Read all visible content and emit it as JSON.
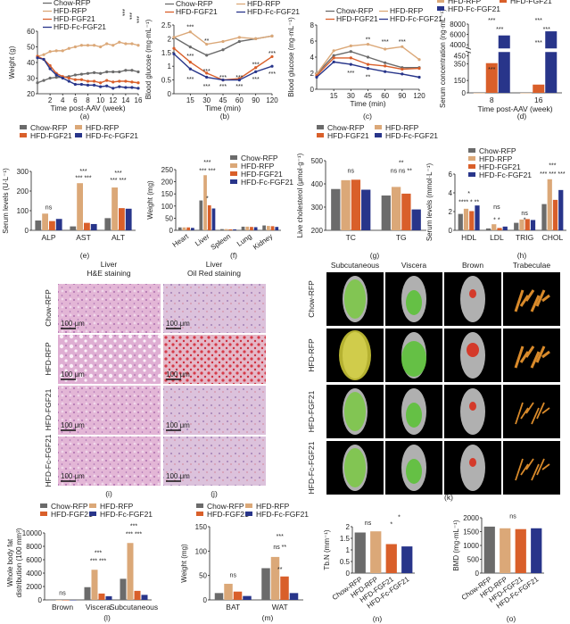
{
  "colors": {
    "Chow-RFP": "#6b6b6b",
    "HFD-RFP": "#dba878",
    "HFD-FGF21": "#d95f2a",
    "HFD-Fc-FGF21": "#28358a"
  },
  "panel_labels": {
    "a": "(a)",
    "b": "(b)",
    "c": "(c)",
    "d": "(d)",
    "e": "(e)",
    "f": "(f)",
    "g": "(g)",
    "h": "(h)",
    "i": "(i)",
    "j": "(j)",
    "k": "(k)",
    "l": "(l)",
    "m": "(m)",
    "n": "(n)",
    "o": "(o)"
  },
  "histology": {
    "col_titles": [
      "Liver\nH&E staining",
      "Liver\nOil Red staining"
    ],
    "row_labels": [
      "Chow-RFP",
      "HFD-RFP",
      "HFD-FGF21",
      "HFD-Fc-FGF21"
    ],
    "scale_bar": "100 μm"
  },
  "imaging": {
    "col_titles": [
      "Subcutaneous",
      "Viscera",
      "Brown",
      "Trabeculae"
    ],
    "row_labels": [
      "Chow-RFP",
      "HFD-RFP",
      "HFD-FGF21",
      "HFD-Fc-FGF21"
    ]
  },
  "chart_data": [
    {
      "id": "a",
      "type": "line",
      "xlabel": "Time post-AAV (week)",
      "ylabel": "Weight (g)",
      "xlim": [
        0,
        16
      ],
      "ylim": [
        20,
        60
      ],
      "xticks": [
        2,
        4,
        6,
        8,
        10,
        12,
        14,
        16
      ],
      "yticks": [
        20,
        30,
        40,
        50,
        60
      ],
      "x": [
        0,
        1,
        2,
        3,
        4,
        5,
        6,
        7,
        8,
        9,
        10,
        11,
        12,
        13,
        14,
        15,
        16
      ],
      "series": [
        {
          "name": "Chow-RFP",
          "values": [
            27,
            28.5,
            30,
            30.5,
            30.5,
            31,
            32,
            32.5,
            33,
            33.5,
            33,
            34,
            34,
            34,
            35,
            35,
            34
          ]
        },
        {
          "name": "HFD-RFP",
          "values": [
            44,
            45,
            47,
            47.5,
            47.5,
            49,
            50,
            51,
            51,
            51,
            50,
            52,
            51,
            53,
            52,
            52,
            51
          ]
        },
        {
          "name": "HFD-FGF21",
          "values": [
            44,
            42,
            38,
            33,
            31,
            30,
            29,
            29,
            28,
            28,
            27,
            28.5,
            27.5,
            28,
            28,
            27.5,
            27
          ]
        },
        {
          "name": "HFD-Fc-FGF21",
          "values": [
            43,
            42,
            36,
            32,
            30,
            28,
            26,
            26,
            25.5,
            25.5,
            24.5,
            25,
            23.5,
            24.5,
            24,
            24,
            23.5
          ]
        }
      ],
      "annotations": [
        "***",
        "***",
        "***"
      ]
    },
    {
      "id": "b",
      "type": "line",
      "xlabel": "Time (min)",
      "ylabel": "Blood glucose (mg·mL⁻¹)",
      "ylim": [
        0,
        2.5
      ],
      "yticks": [
        0,
        0.5,
        1.0,
        1.5,
        2.0,
        2.5
      ],
      "categories": [
        "0",
        "15",
        "30",
        "45",
        "60",
        "90",
        "120"
      ],
      "xticks": [
        "15",
        "30",
        "45",
        "60",
        "90",
        "120"
      ],
      "series": [
        {
          "name": "Chow-RFP",
          "values": [
            2.05,
            1.7,
            1.4,
            1.6,
            1.9,
            2.0,
            2.1
          ]
        },
        {
          "name": "HFD-RFP",
          "values": [
            2.05,
            2.25,
            1.8,
            1.9,
            2.05,
            2.0,
            2.1
          ]
        },
        {
          "name": "HFD-FGF21",
          "values": [
            1.65,
            1.15,
            0.75,
            0.5,
            0.55,
            0.95,
            1.35
          ]
        },
        {
          "name": "HFD-Fc-FGF21",
          "values": [
            1.45,
            0.9,
            0.6,
            0.5,
            0.5,
            0.8,
            1.0
          ]
        }
      ],
      "annotations": [
        {
          "cat": 1,
          "y": 2.45,
          "text": "***"
        },
        {
          "cat": 2,
          "y": 1.95,
          "text": "**"
        },
        {
          "cat": 1,
          "y": 1.4,
          "text": "***"
        },
        {
          "cat": 2,
          "y": 0.85,
          "text": "***"
        },
        {
          "cat": 3,
          "y": 0.62,
          "text": "***"
        },
        {
          "cat": 4,
          "y": 0.62,
          "text": "***"
        },
        {
          "cat": 5,
          "y": 1.08,
          "text": "***"
        },
        {
          "cat": 6,
          "y": 1.5,
          "text": "***"
        },
        {
          "cat": 1,
          "y": 0.55,
          "text": "***"
        },
        {
          "cat": 2,
          "y": 0.3,
          "text": "***"
        },
        {
          "cat": 3,
          "y": 0.3,
          "text": "***"
        },
        {
          "cat": 4,
          "y": 0.3,
          "text": "***"
        },
        {
          "cat": 5,
          "y": 0.55,
          "text": "***"
        },
        {
          "cat": 6,
          "y": 0.75,
          "text": "***"
        }
      ]
    },
    {
      "id": "c",
      "type": "line",
      "xlabel": "Time (min)",
      "ylabel": "Blood glucose (mg·mL⁻¹)",
      "ylim": [
        0,
        8
      ],
      "yticks": [
        0,
        2,
        4,
        6,
        8
      ],
      "categories": [
        "0",
        "15",
        "30",
        "45",
        "60",
        "90",
        "120"
      ],
      "xticks": [
        "15",
        "30",
        "45",
        "60",
        "90",
        "120"
      ],
      "series": [
        {
          "name": "Chow-RFP",
          "values": [
            1.9,
            4.2,
            4.7,
            4.0,
            3.3,
            2.7,
            2.7
          ]
        },
        {
          "name": "HFD-RFP",
          "values": [
            1.9,
            4.8,
            5.4,
            5.6,
            5.0,
            5.3,
            3.7
          ]
        },
        {
          "name": "HFD-FGF21",
          "values": [
            1.7,
            3.9,
            3.9,
            3.1,
            2.9,
            2.5,
            2.6
          ]
        },
        {
          "name": "HFD-Fc-FGF21",
          "values": [
            1.5,
            3.4,
            3.1,
            2.6,
            2.2,
            1.9,
            1.5
          ]
        }
      ],
      "annotations": [
        {
          "cat": 3,
          "y": 6.3,
          "text": "**"
        },
        {
          "cat": 4,
          "y": 6.0,
          "text": "***"
        },
        {
          "cat": 5,
          "y": 6.0,
          "text": "***"
        },
        {
          "cat": 2,
          "y": 2.1,
          "text": "***"
        },
        {
          "cat": 3,
          "y": 1.6,
          "text": "**"
        }
      ]
    },
    {
      "id": "d",
      "type": "bar",
      "broken_axis": true,
      "xlabel": "Time post-AAV (week)",
      "ylabel": "Serum concentration (ng·mL⁻¹)",
      "categories": [
        "8",
        "16"
      ],
      "ylim_lower": [
        0,
        450
      ],
      "ylim_upper": [
        4000,
        8000
      ],
      "yticks": [
        0,
        150,
        350,
        450,
        4000,
        6000,
        8000
      ],
      "series": [
        {
          "name": "HFD-RFP",
          "values": [
            0,
            0
          ]
        },
        {
          "name": "HFD-FGF21",
          "values": [
            360,
            100
          ]
        },
        {
          "name": "HFD-Fc-FGF21",
          "values": [
            5800,
            6600
          ]
        }
      ],
      "annotations": [
        "***",
        "***",
        "***",
        "***",
        "***",
        "***"
      ]
    },
    {
      "id": "e",
      "type": "bar",
      "ylabel": "Serum levels (U·L⁻¹)",
      "ylim": [
        0,
        300
      ],
      "yticks": [
        0,
        100,
        200,
        300
      ],
      "categories": [
        "ALP",
        "AST",
        "ALT"
      ],
      "series": [
        {
          "name": "Chow-RFP",
          "values": [
            50,
            20,
            62
          ]
        },
        {
          "name": "HFD-RFP",
          "values": [
            85,
            240,
            218
          ]
        },
        {
          "name": "HFD-FGF21",
          "values": [
            47,
            38,
            113
          ]
        },
        {
          "name": "HFD-Fc-FGF21",
          "values": [
            58,
            32,
            110
          ]
        }
      ],
      "annotations": [
        {
          "cat": 0,
          "y": 115,
          "text": "ns"
        },
        {
          "cat": 1,
          "y": 265,
          "text": "*** ***"
        },
        {
          "cat": 1,
          "y": 300,
          "text": "***"
        },
        {
          "cat": 2,
          "y": 255,
          "text": "*** ***"
        },
        {
          "cat": 2,
          "y": 290,
          "text": "***"
        }
      ]
    },
    {
      "id": "f",
      "type": "bar",
      "ylabel": "Weight (mg)",
      "ylim": [
        0,
        250
      ],
      "yticks": [
        0,
        50,
        100,
        150,
        200,
        250
      ],
      "categories": [
        "Heart",
        "Liver",
        "Spleen",
        "Lung",
        "Kidney"
      ],
      "rotate_ticks": true,
      "series": [
        {
          "name": "Chow-RFP",
          "values": [
            12,
            123,
            5,
            15,
            20
          ]
        },
        {
          "name": "HFD-RFP",
          "values": [
            12,
            227,
            5,
            15,
            18
          ]
        },
        {
          "name": "HFD-FGF21",
          "values": [
            12,
            103,
            4,
            14,
            17
          ]
        },
        {
          "name": "HFD-Fc-FGF21",
          "values": [
            10,
            90,
            4,
            13,
            14
          ]
        }
      ],
      "annotations": [
        {
          "cat": 1,
          "y": 245,
          "text": "*** ***"
        },
        {
          "cat": 1,
          "y": 280,
          "text": "***"
        },
        {
          "cat": 1,
          "y": 130,
          "text": "*"
        }
      ]
    },
    {
      "id": "g",
      "type": "bar",
      "ylabel": "Live cholesterol (μmol·g⁻¹)",
      "ylim": [
        200,
        500
      ],
      "yticks": [
        200,
        300,
        400,
        500
      ],
      "categories": [
        "TC",
        "TG"
      ],
      "series": [
        {
          "name": "Chow-RFP",
          "values": [
            378,
            350
          ]
        },
        {
          "name": "HFD-RFP",
          "values": [
            416,
            387
          ]
        },
        {
          "name": "HFD-FGF21",
          "values": [
            418,
            358
          ]
        },
        {
          "name": "HFD-Fc-FGF21",
          "values": [
            375,
            290
          ]
        }
      ],
      "annotations": [
        {
          "cat": 0,
          "y": 455,
          "text": "ns"
        },
        {
          "cat": 1,
          "y": 455,
          "text": "ns ns  **"
        },
        {
          "cat": 1,
          "y": 490,
          "text": "**"
        }
      ]
    },
    {
      "id": "h",
      "type": "bar",
      "ylabel": "Serum levels (mmol·L⁻¹)",
      "ylim": [
        0,
        6
      ],
      "yticks": [
        0,
        2,
        4,
        6
      ],
      "categories": [
        "HDL",
        "LDL",
        "TRIG",
        "CHOL"
      ],
      "series": [
        {
          "name": "Chow-RFP",
          "values": [
            1.75,
            0.2,
            0.8,
            2.8
          ]
        },
        {
          "name": "HFD-RFP",
          "values": [
            2.3,
            0.65,
            1.15,
            5.45
          ]
        },
        {
          "name": "HFD-FGF21",
          "values": [
            2.05,
            0.25,
            1.2,
            3.25
          ]
        },
        {
          "name": "HFD-Fc-FGF21",
          "values": [
            2.65,
            0.4,
            1.1,
            4.3
          ]
        }
      ],
      "annotations": [
        {
          "cat": 0,
          "y": 3.0,
          "text": "**** * **"
        },
        {
          "cat": 0,
          "y": 3.9,
          "text": "*"
        },
        {
          "cat": 1,
          "y": 1.1,
          "text": "* *"
        },
        {
          "cat": 1,
          "y": 2.5,
          "text": "ns"
        },
        {
          "cat": 2,
          "y": 1.1,
          "text": "*"
        },
        {
          "cat": 2,
          "y": 1.8,
          "text": "ns"
        },
        {
          "cat": 3,
          "y": 6.0,
          "text": "*** *** ***"
        },
        {
          "cat": 3,
          "y": 6.9,
          "text": "***"
        }
      ]
    },
    {
      "id": "l",
      "type": "bar",
      "ylabel": "Whole body fat distribution (100 mm³)",
      "ylim": [
        0,
        10000
      ],
      "yticks": [
        0,
        2000,
        4000,
        6000,
        8000,
        10000
      ],
      "categories": [
        "Brown",
        "Viscera",
        "Subcutaneous"
      ],
      "series": [
        {
          "name": "Chow-RFP",
          "values": [
            0,
            1900,
            3150
          ]
        },
        {
          "name": "HFD-RFP",
          "values": [
            0,
            4500,
            8500
          ]
        },
        {
          "name": "HFD-FGF21",
          "values": [
            0,
            950,
            1350
          ]
        },
        {
          "name": "HFD-Fc-FGF21",
          "values": [
            0,
            550,
            750
          ]
        }
      ],
      "annotations": [
        {
          "cat": 0,
          "y": 1000,
          "text": "ns"
        },
        {
          "cat": 1,
          "y": 5800,
          "text": "*** ***"
        },
        {
          "cat": 1,
          "y": 7000,
          "text": "***"
        },
        {
          "cat": 2,
          "y": 9800,
          "text": "*** ***"
        },
        {
          "cat": 2,
          "y": 11000,
          "text": "***"
        }
      ]
    },
    {
      "id": "m",
      "type": "bar",
      "ylabel": "Weight (mg)",
      "ylim": [
        0,
        150
      ],
      "yticks": [
        0,
        50,
        100,
        150
      ],
      "categories": [
        "BAT",
        "WAT"
      ],
      "series": [
        {
          "name": "Chow-RFP",
          "values": [
            14,
            65
          ]
        },
        {
          "name": "HFD-RFP",
          "values": [
            33,
            88
          ]
        },
        {
          "name": "HFD-FGF21",
          "values": [
            17,
            48
          ]
        },
        {
          "name": "HFD-Fc-FGF21",
          "values": [
            8,
            14
          ]
        }
      ],
      "annotations": [
        {
          "cat": 0,
          "y": 50,
          "text": "ns"
        },
        {
          "cat": 1,
          "y": 108,
          "text": "ns  **"
        },
        {
          "cat": 1,
          "y": 130,
          "text": "***"
        },
        {
          "cat": 1,
          "y": 62,
          "text": "**"
        }
      ]
    },
    {
      "id": "n",
      "type": "bar",
      "ylabel": "Tb.N (mm⁻¹)",
      "ylim": [
        0,
        2.0
      ],
      "yticks": [
        0,
        0.5,
        1.0,
        1.5,
        2.0
      ],
      "categories": [
        "Chow-RFP",
        "HFD-RFP",
        "HFD-FGF21",
        "HFD-Fc-FGF21"
      ],
      "rotate_ticks": true,
      "single": true,
      "values": [
        1.75,
        1.8,
        1.25,
        1.15
      ],
      "annotations": [
        {
          "cat": 0.5,
          "y": 2.15,
          "text": "ns"
        },
        {
          "cat": 2,
          "y": 2.1,
          "text": "*"
        },
        {
          "cat": 2.5,
          "y": 2.4,
          "text": "*"
        }
      ]
    },
    {
      "id": "o",
      "type": "bar",
      "ylabel": "BMD (mg·mL⁻¹)",
      "ylim": [
        0,
        2000
      ],
      "yticks": [
        0,
        500,
        1000,
        1500,
        2000
      ],
      "categories": [
        "Chow-RFP",
        "HFD-RFP",
        "HFD-FGF21",
        "HFD-Fc-FGF21"
      ],
      "rotate_ticks": true,
      "single": true,
      "values": [
        1680,
        1620,
        1590,
        1620
      ],
      "annotations": [
        {
          "cat": 1.5,
          "y": 2050,
          "text": "ns"
        }
      ]
    }
  ]
}
